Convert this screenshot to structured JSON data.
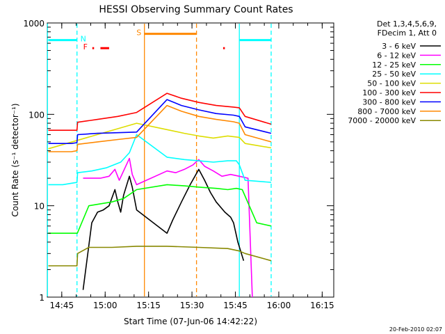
{
  "chart_data": {
    "type": "line",
    "title": "HESSI Observing Summary Count Rates",
    "xlabel": "Start Time (07-Jun-06 14:42:22)",
    "ylabel": "Count Rate (s⁻¹ detector⁻¹)",
    "y_scale": "log",
    "ylim": [
      1,
      1000
    ],
    "xlim_minutes": [
      -2.37,
      96.63
    ],
    "x_ticks": [
      "14:45",
      "15:00",
      "15:15",
      "15:30",
      "15:45",
      "16:00",
      "16:15"
    ],
    "y_ticks": [
      "1",
      "10",
      "100",
      "1000"
    ],
    "timestamp": "20-Feb-2010 02:07",
    "legend_header": [
      "Det 1,3,4,5,6,9,",
      "FDecim 1, Att 0"
    ],
    "series": [
      {
        "name": "3 - 6 keV",
        "color": "#000000",
        "t": [
          10,
          13,
          15,
          17,
          19,
          21,
          22,
          23,
          24,
          26,
          27,
          28.5,
          39,
          41,
          44,
          47,
          49,
          50,
          52,
          54,
          56,
          59,
          61,
          62,
          63.5,
          65.5
        ],
        "v": [
          1.2,
          6.5,
          8.5,
          9,
          10,
          15,
          11,
          8.5,
          13,
          21,
          16,
          9,
          5,
          7,
          11,
          17,
          22,
          25,
          19,
          14,
          11,
          8.5,
          7.5,
          6.5,
          4,
          2.5
        ]
      },
      {
        "name": "6 - 12 keV",
        "color": "#ff00ff",
        "t": [
          10,
          13,
          16,
          19,
          21,
          22.5,
          24,
          26,
          27,
          28.5,
          39,
          42,
          45,
          48,
          50,
          52,
          55,
          58,
          61,
          64,
          67,
          68.5
        ],
        "v": [
          20,
          20,
          20,
          21,
          25,
          19,
          24,
          33,
          22,
          17,
          24,
          23,
          25,
          28,
          32,
          27,
          24,
          21,
          22,
          21,
          20,
          1
        ]
      },
      {
        "name": "12 - 25 keV",
        "color": "#00ff00",
        "t": [
          -2,
          3,
          8,
          12,
          16,
          20,
          24,
          28.5,
          39,
          45,
          50,
          56,
          60,
          63,
          65,
          70,
          75
        ],
        "v": [
          5,
          5,
          5,
          10,
          10.5,
          11,
          12,
          15,
          17,
          16.5,
          16,
          15.5,
          15,
          15.5,
          15,
          6.5,
          6
        ]
      },
      {
        "name": "25 - 50 keV",
        "color": "#00ffff",
        "t": [
          -2,
          3,
          7.9,
          8.1,
          13,
          18,
          23,
          26,
          28.5,
          39,
          45,
          50,
          55,
          60,
          63,
          64,
          66,
          75
        ],
        "v": [
          17,
          17,
          18,
          23,
          24,
          26,
          30,
          38,
          60,
          34,
          32,
          31,
          30,
          31,
          31,
          28,
          19,
          18
        ]
      },
      {
        "name": "50 - 100 keV",
        "color": "#dddd00",
        "t": [
          -2,
          28.5,
          39,
          45,
          50,
          55,
          60,
          64,
          66,
          75
        ],
        "v": [
          42,
          80,
          68,
          62,
          58,
          55,
          58,
          56,
          48,
          43
        ]
      },
      {
        "name": "100 - 300 keV",
        "color": "#ff0000",
        "t": [
          -2,
          6,
          7.9,
          8.1,
          15,
          22,
          28.5,
          39,
          44,
          50,
          56,
          62,
          64,
          66,
          75
        ],
        "v": [
          67,
          67,
          67,
          82,
          88,
          95,
          105,
          170,
          150,
          135,
          125,
          120,
          118,
          95,
          78
        ]
      },
      {
        "name": "300 - 800 keV",
        "color": "#0000ff",
        "t": [
          -2,
          6,
          7.9,
          8.1,
          15,
          22,
          28.5,
          39,
          44,
          50,
          56,
          62,
          64,
          66,
          75
        ],
        "v": [
          48,
          48,
          49,
          60,
          62,
          63,
          64,
          145,
          125,
          112,
          102,
          98,
          95,
          73,
          62
        ]
      },
      {
        "name": "800 - 7000 keV",
        "color": "#ff8800",
        "t": [
          -2,
          6,
          7.9,
          8.1,
          15,
          22,
          28.5,
          39,
          44,
          50,
          56,
          62,
          64,
          66,
          75
        ],
        "v": [
          39,
          39,
          40,
          47,
          50,
          53,
          56,
          125,
          108,
          95,
          88,
          83,
          80,
          60,
          50
        ]
      },
      {
        "name": "7000 - 20000 keV",
        "color": "#888800",
        "t": [
          -2,
          7.9,
          8.1,
          12,
          20,
          28.5,
          39,
          50,
          60,
          64,
          66,
          75
        ],
        "v": [
          2.2,
          2.2,
          3,
          3.5,
          3.5,
          3.6,
          3.6,
          3.5,
          3.4,
          3.2,
          3,
          2.5
        ]
      }
    ],
    "flags": [
      {
        "label": "N",
        "color": "#00ffff",
        "t_start": -2,
        "t_end": 7.9,
        "v": 650
      },
      {
        "label": "N",
        "color": "#00ffff",
        "t_start": 64,
        "t_end": 75,
        "v": 650
      },
      {
        "label": "F",
        "color": "#ff0000",
        "segments": [
          [
            13.2,
            13.8
          ],
          [
            16,
            19
          ]
        ],
        "v": 530
      },
      {
        "label": "F",
        "color": "#ff0000",
        "segments": [
          [
            58.4,
            59
          ]
        ],
        "v": 530
      },
      {
        "label": "S",
        "color": "#ff8800",
        "t_start": 31.2,
        "t_end": 49.2,
        "v": 760
      }
    ],
    "vlines": [
      {
        "t": 7.9,
        "color": "#00ffff",
        "style": "dashed"
      },
      {
        "t": 64.0,
        "color": "#00ffff",
        "style": "solid"
      },
      {
        "t": 75.0,
        "color": "#00ffff",
        "style": "dashed"
      },
      {
        "t": -2.3,
        "color": "#00ffff",
        "style": "solid"
      },
      {
        "t": 31.2,
        "color": "#ff8800",
        "style": "solid"
      },
      {
        "t": 49.2,
        "color": "#ff8800",
        "style": "dashed"
      }
    ]
  }
}
